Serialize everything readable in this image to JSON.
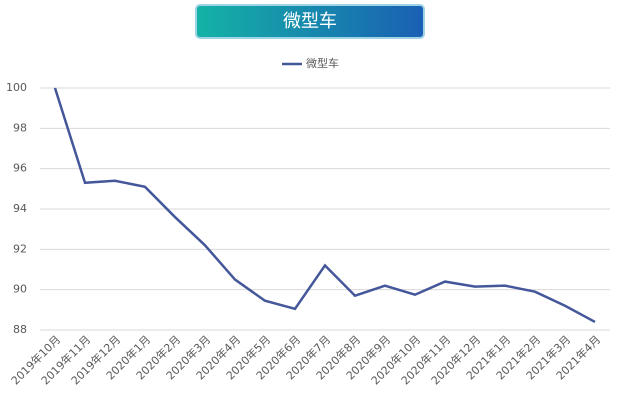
{
  "chart_data": {
    "type": "line",
    "title": "微型车",
    "categories": [
      "2019年10月",
      "2019年11月",
      "2019年12月",
      "2020年1月",
      "2020年2月",
      "2020年3月",
      "2020年4月",
      "2020年5月",
      "2020年6月",
      "2020年7月",
      "2020年8月",
      "2020年9月",
      "2020年10月",
      "2020年11月",
      "2020年12月",
      "2021年1月",
      "2021年2月",
      "2021年3月",
      "2021年4月"
    ],
    "series": [
      {
        "name": "微型车",
        "color": "#44579a",
        "values": [
          100,
          95.3,
          95.4,
          95.1,
          93.6,
          92.2,
          90.5,
          89.45,
          89.05,
          91.2,
          89.7,
          90.2,
          89.75,
          90.4,
          90.15,
          90.2,
          89.9,
          89.2,
          88.4
        ]
      }
    ],
    "ylim": [
      88,
      100
    ],
    "yticks": [
      88,
      90,
      92,
      94,
      96,
      98,
      100
    ],
    "grid": true
  }
}
